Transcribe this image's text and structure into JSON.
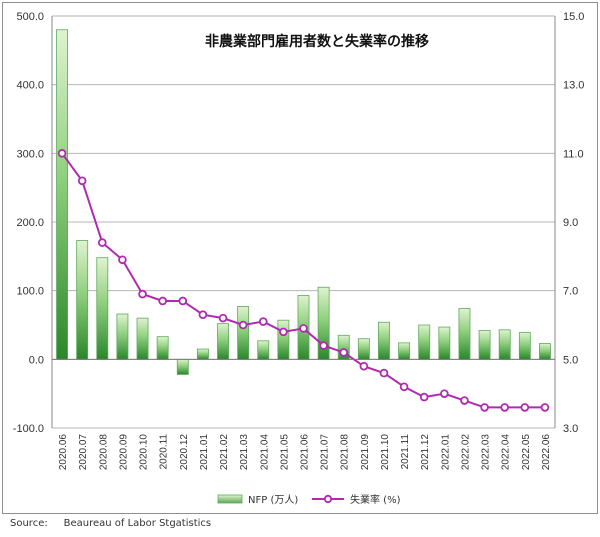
{
  "chart_data": {
    "type": "bar",
    "title": "非農業部門雇用者数と失業率の推移",
    "categories": [
      "2020.06",
      "2020.07",
      "2020.08",
      "2020.09",
      "2020.10",
      "2020.11",
      "2020.12",
      "2021.01",
      "2021.02",
      "2021.03",
      "2021.04",
      "2021.05",
      "2021.06",
      "2021.07",
      "2021.08",
      "2021.09",
      "2021.10",
      "2021.11",
      "2021.12",
      "2022.01",
      "2022.02",
      "2022.03",
      "2022.04",
      "2022.05",
      "2022.06"
    ],
    "series": [
      {
        "name": "NFP (万人)",
        "type": "bar",
        "axis": "left",
        "values": [
          480,
          173,
          148,
          66,
          60,
          33,
          -22,
          15,
          52,
          77,
          27,
          57,
          93,
          105,
          35,
          30,
          54,
          24,
          50,
          47,
          74,
          42,
          43,
          39,
          23
        ]
      },
      {
        "name": "失業率 (%)",
        "type": "line",
        "axis": "right",
        "values": [
          11.0,
          10.2,
          8.4,
          7.9,
          6.9,
          6.7,
          6.7,
          6.3,
          6.2,
          6.0,
          6.1,
          5.8,
          5.9,
          5.4,
          5.2,
          4.8,
          4.6,
          4.2,
          3.9,
          4.0,
          3.8,
          3.6,
          3.6,
          3.6,
          3.6
        ]
      }
    ],
    "left_axis": {
      "ylim": [
        -100,
        500
      ],
      "ticks": [
        "-100.0",
        "0.0",
        "100.0",
        "200.0",
        "300.0",
        "400.0",
        "500.0"
      ]
    },
    "right_axis": {
      "ylim": [
        3.0,
        15.0
      ],
      "ticks": [
        "3.0",
        "5.0",
        "7.0",
        "9.0",
        "11.0",
        "13.0",
        "15.0"
      ]
    },
    "grid": true,
    "legend_position": "bottom",
    "colors": {
      "bar_light": "#d9f0c8",
      "bar_dark": "#2e8b2e",
      "bar_border": "#5fa85f",
      "line": "#b02ab0",
      "marker_fill": "#ffffff",
      "grid": "#b5b5b5"
    }
  },
  "footer": {
    "source_label": "Source:",
    "source_text": "Beaureau of Labor Stgatistics"
  }
}
